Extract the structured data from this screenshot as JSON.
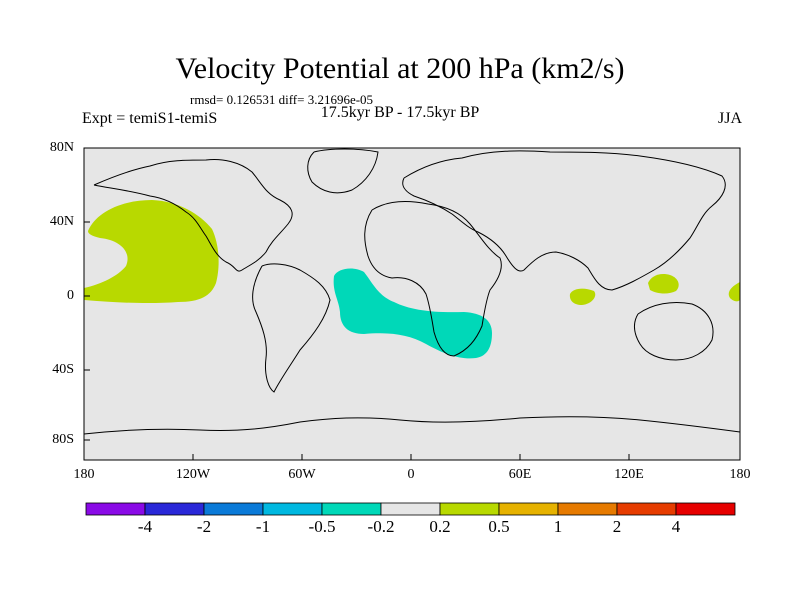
{
  "title": "Velocity Potential at 200 hPa (km2/s)",
  "stats": "rmsd= 0.126531  diff= 3.21696e-05",
  "left_label": "Expt = temiS1-temiS",
  "center_label": "17.5kyr BP - 17.5kyr BP",
  "right_label": "JJA",
  "axes": {
    "lat_ticks": [
      "80N",
      "40N",
      "0",
      "40S",
      "80S"
    ],
    "lon_ticks": [
      "180",
      "120W",
      "60W",
      "0",
      "60E",
      "120E",
      "180"
    ]
  },
  "colors": {
    "ocean_bg": "#e6e6e6",
    "positive_fill": "#b8d900",
    "negative_fill": "#00d8b8",
    "coast": "#000000"
  },
  "colorbar": {
    "colors": [
      "#8a0ae6",
      "#2a28d8",
      "#0a7ad8",
      "#00b8e0",
      "#00d8b8",
      "#e6e6e6",
      "#b8d900",
      "#e6b200",
      "#e67a00",
      "#e63c00",
      "#e60000"
    ],
    "labels": [
      "-4",
      "-2",
      "-1",
      "-0.5",
      "-0.2",
      "0.2",
      "0.5",
      "1",
      "2",
      "4"
    ]
  }
}
